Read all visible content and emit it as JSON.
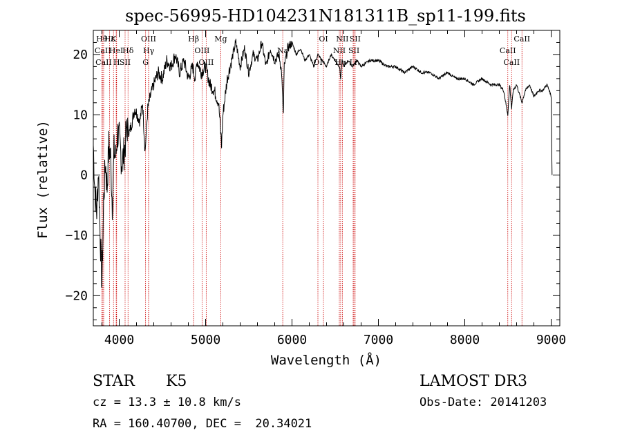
{
  "chart_data": {
    "type": "line",
    "title": "spec-56995-HD104231N181311B_sp11-199.fits",
    "xlabel": "Wavelength (Å)",
    "ylabel": "Flux (relative)",
    "xlim": [
      3700,
      9100
    ],
    "ylim": [
      -25,
      24
    ],
    "xticks": [
      4000,
      5000,
      6000,
      7000,
      8000,
      9000
    ],
    "yticks": [
      -20,
      -10,
      0,
      10,
      20
    ],
    "series": [
      {
        "name": "flux",
        "x": [
          3700,
          3720,
          3740,
          3760,
          3780,
          3800,
          3820,
          3840,
          3860,
          3880,
          3900,
          3920,
          3940,
          3960,
          3980,
          4000,
          4030,
          4060,
          4090,
          4120,
          4150,
          4180,
          4210,
          4240,
          4270,
          4300,
          4330,
          4360,
          4400,
          4450,
          4500,
          4550,
          4600,
          4650,
          4700,
          4750,
          4800,
          4850,
          4880,
          4900,
          4950,
          5000,
          5050,
          5100,
          5150,
          5170,
          5185,
          5200,
          5250,
          5300,
          5350,
          5400,
          5450,
          5500,
          5550,
          5600,
          5650,
          5700,
          5750,
          5800,
          5850,
          5880,
          5893,
          5900,
          5910,
          5950,
          6000,
          6050,
          6100,
          6150,
          6200,
          6250,
          6300,
          6350,
          6400,
          6450,
          6500,
          6550,
          6563,
          6580,
          6600,
          6650,
          6700,
          6750,
          6800,
          6900,
          7000,
          7100,
          7200,
          7300,
          7400,
          7500,
          7600,
          7700,
          7800,
          7900,
          8000,
          8100,
          8200,
          8300,
          8400,
          8450,
          8498,
          8520,
          8542,
          8560,
          8600,
          8662,
          8700,
          8750,
          8800,
          8850,
          8900,
          8950,
          8980,
          9000,
          9010
        ],
        "values": [
          5,
          -3,
          -6,
          1,
          -10,
          -18,
          -4,
          2,
          -2,
          5,
          3,
          -5,
          4,
          3,
          7,
          6,
          2,
          4,
          8,
          7,
          9,
          11,
          10,
          9,
          12,
          4,
          11,
          13,
          15,
          17,
          16,
          19,
          18,
          20,
          17,
          19,
          16,
          18,
          16,
          19,
          17,
          18,
          15,
          14,
          12,
          8,
          5,
          10,
          16,
          19,
          22,
          18,
          21,
          17,
          20,
          19,
          22,
          18,
          21,
          19,
          20,
          17,
          12,
          10,
          18,
          21,
          22,
          20,
          21,
          19,
          20,
          18,
          20,
          19,
          18,
          20,
          19,
          18,
          16,
          19,
          18,
          19,
          18,
          19,
          18,
          19,
          19,
          18,
          18,
          17,
          18,
          17,
          17,
          16,
          17,
          16,
          16,
          15,
          16,
          15,
          15,
          14,
          10,
          15,
          11,
          14,
          15,
          12,
          14,
          15,
          13,
          14,
          14,
          15,
          14,
          13,
          0
        ]
      }
    ],
    "lines": [
      {
        "name": "Hθ",
        "x": 3798
      },
      {
        "name": "CaII",
        "x": 3810
      },
      {
        "name": "CaII",
        "x": 3820
      },
      {
        "name": "K",
        "x": 3934
      },
      {
        "name": "HeI",
        "x": 3965
      },
      {
        "name": "H",
        "x": 3970
      },
      {
        "name": "Hε",
        "x": 3889
      },
      {
        "name": "Hδ",
        "x": 4102
      },
      {
        "name": "SII",
        "x": 4068
      },
      {
        "name": "OIII",
        "x": 4340
      },
      {
        "name": "Hγ",
        "x": 4341
      },
      {
        "name": "G",
        "x": 4305
      },
      {
        "name": "Hβ",
        "x": 4861
      },
      {
        "name": "OIII",
        "x": 4959
      },
      {
        "name": "OIII",
        "x": 5007
      },
      {
        "name": "Mg",
        "x": 5175
      },
      {
        "name": "Na",
        "x": 5893
      },
      {
        "name": "OI",
        "x": 6300
      },
      {
        "name": "OI",
        "x": 6364
      },
      {
        "name": "NII",
        "x": 6548
      },
      {
        "name": "Hα",
        "x": 6563
      },
      {
        "name": "NII",
        "x": 6583
      },
      {
        "name": "SII",
        "x": 6717
      },
      {
        "name": "Li",
        "x": 6708
      },
      {
        "name": "SII",
        "x": 6731
      },
      {
        "name": "CaII",
        "x": 8498
      },
      {
        "name": "CaII",
        "x": 8542
      },
      {
        "name": "CaII",
        "x": 8662
      }
    ]
  },
  "labels": {
    "obj_class": "STAR",
    "subclass": "K5",
    "survey": "LAMOST DR3",
    "cz": "cz = 13.3 ± 10.8 km/s",
    "obs_date": "Obs-Date: 20141203",
    "radec": "RA = 160.40700, DEC =  20.34021"
  },
  "colors": {
    "spectrum": "#000000",
    "line_marker": "#cc0000"
  }
}
